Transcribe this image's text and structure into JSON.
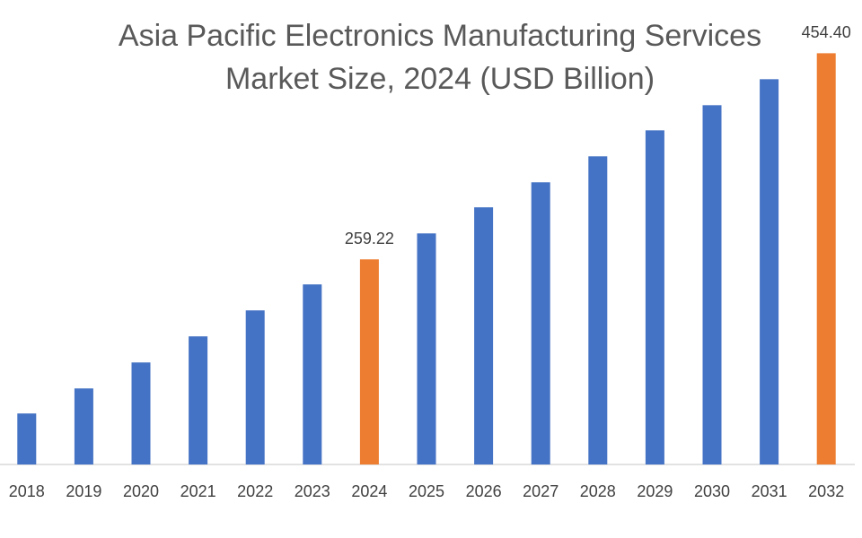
{
  "chart_data": {
    "type": "bar",
    "title": [
      "Asia Pacific Electronics Manufacturing Services",
      "Market Size, 2024 (USD Billion)"
    ],
    "categories": [
      "2018",
      "2019",
      "2020",
      "2021",
      "2022",
      "2023",
      "2024",
      "2025",
      "2026",
      "2027",
      "2028",
      "2029",
      "2030",
      "2031",
      "2032"
    ],
    "values": [
      113.3,
      137.0,
      161.6,
      186.3,
      210.9,
      235.5,
      259.22,
      283.8,
      308.5,
      332.2,
      356.8,
      381.4,
      405.2,
      429.8,
      454.4
    ],
    "value_labels": [
      null,
      null,
      null,
      null,
      null,
      null,
      "259.22",
      null,
      null,
      null,
      null,
      null,
      null,
      null,
      "454.40"
    ],
    "colors": [
      "#4472c4",
      "#4472c4",
      "#4472c4",
      "#4472c4",
      "#4472c4",
      "#4472c4",
      "#ed7d31",
      "#4472c4",
      "#4472c4",
      "#4472c4",
      "#4472c4",
      "#4472c4",
      "#4472c4",
      "#4472c4",
      "#ed7d31"
    ],
    "ylim": [
      65,
      470
    ]
  }
}
